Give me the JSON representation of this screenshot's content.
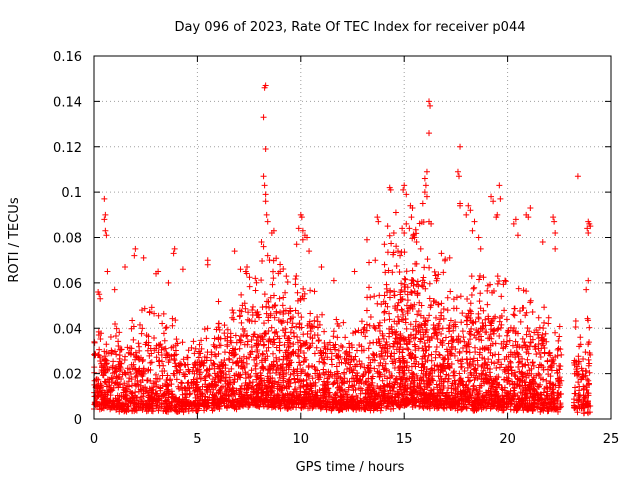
{
  "chart_data": {
    "type": "scatter",
    "title": "Day 096 of 2023, Rate Of TEC Index for receiver p044",
    "xlabel": "GPS time / hours",
    "ylabel": "ROTI / TECUs",
    "xlim": [
      0,
      25
    ],
    "ylim": [
      0,
      0.16
    ],
    "x_ticks": [
      0,
      5,
      10,
      15,
      20,
      25
    ],
    "x_tick_labels": [
      "0",
      "5",
      "10",
      "15",
      "20",
      "25"
    ],
    "y_ticks": [
      0,
      0.02,
      0.04,
      0.06,
      0.08,
      0.1,
      0.12,
      0.14,
      0.16
    ],
    "y_tick_labels": [
      "0",
      "0.02",
      "0.04",
      "0.06",
      "0.08",
      "0.1",
      "0.12",
      "0.14",
      "0.16"
    ],
    "grid": true,
    "marker": "+",
    "color": "#ff0000",
    "series": [
      {
        "name": "ROTI",
        "points": [
          [
            8.3,
            0.147
          ],
          [
            8.25,
            0.146
          ],
          [
            8.2,
            0.133
          ],
          [
            8.3,
            0.119
          ],
          [
            8.2,
            0.107
          ],
          [
            8.25,
            0.103
          ],
          [
            8.3,
            0.099
          ],
          [
            8.3,
            0.096
          ],
          [
            8.35,
            0.09
          ],
          [
            8.4,
            0.087
          ],
          [
            8.1,
            0.078
          ],
          [
            8.4,
            0.072
          ],
          [
            8.6,
            0.082
          ],
          [
            8.7,
            0.083
          ],
          [
            8.2,
            0.076
          ],
          [
            16.2,
            0.14
          ],
          [
            16.25,
            0.138
          ],
          [
            16.2,
            0.126
          ],
          [
            16.1,
            0.109
          ],
          [
            16.0,
            0.106
          ],
          [
            16.05,
            0.103
          ],
          [
            16.0,
            0.1
          ],
          [
            16.1,
            0.098
          ],
          [
            15.9,
            0.095
          ],
          [
            16.2,
            0.087
          ],
          [
            16.3,
            0.086
          ],
          [
            17.7,
            0.12
          ],
          [
            17.6,
            0.109
          ],
          [
            17.65,
            0.107
          ],
          [
            17.7,
            0.095
          ],
          [
            17.7,
            0.094
          ],
          [
            15.0,
            0.103
          ],
          [
            14.95,
            0.101
          ],
          [
            15.1,
            0.099
          ],
          [
            15.3,
            0.094
          ],
          [
            15.4,
            0.093
          ],
          [
            15.35,
            0.089
          ],
          [
            15.1,
            0.086
          ],
          [
            14.9,
            0.084
          ],
          [
            15.0,
            0.082
          ],
          [
            15.5,
            0.08
          ],
          [
            15.8,
            0.075
          ],
          [
            15.6,
            0.078
          ],
          [
            14.3,
            0.102
          ],
          [
            14.35,
            0.101
          ],
          [
            14.6,
            0.091
          ],
          [
            13.7,
            0.089
          ],
          [
            13.75,
            0.087
          ],
          [
            13.2,
            0.079
          ],
          [
            14.2,
            0.085
          ],
          [
            14.5,
            0.082
          ],
          [
            14.7,
            0.074
          ],
          [
            14.8,
            0.072
          ],
          [
            10.0,
            0.09
          ],
          [
            10.05,
            0.089
          ],
          [
            10.1,
            0.083
          ],
          [
            10.2,
            0.081
          ],
          [
            10.3,
            0.08
          ],
          [
            10.1,
            0.079
          ],
          [
            9.9,
            0.084
          ],
          [
            9.8,
            0.077
          ],
          [
            10.4,
            0.074
          ],
          [
            19.6,
            0.103
          ],
          [
            19.65,
            0.097
          ],
          [
            19.3,
            0.096
          ],
          [
            19.2,
            0.098
          ],
          [
            19.5,
            0.09
          ],
          [
            19.45,
            0.089
          ],
          [
            18.1,
            0.094
          ],
          [
            18.2,
            0.092
          ],
          [
            18.0,
            0.09
          ],
          [
            18.4,
            0.087
          ],
          [
            18.3,
            0.083
          ],
          [
            18.6,
            0.08
          ],
          [
            20.4,
            0.088
          ],
          [
            20.3,
            0.086
          ],
          [
            20.5,
            0.081
          ],
          [
            20.9,
            0.09
          ],
          [
            21.0,
            0.089
          ],
          [
            21.1,
            0.093
          ],
          [
            22.2,
            0.089
          ],
          [
            22.25,
            0.087
          ],
          [
            22.3,
            0.082
          ],
          [
            23.4,
            0.107
          ],
          [
            23.9,
            0.087
          ],
          [
            23.95,
            0.086
          ],
          [
            24.0,
            0.085
          ],
          [
            23.85,
            0.084
          ],
          [
            23.9,
            0.082
          ],
          [
            0.5,
            0.097
          ],
          [
            0.55,
            0.09
          ],
          [
            0.5,
            0.088
          ],
          [
            0.55,
            0.083
          ],
          [
            0.6,
            0.081
          ],
          [
            0.65,
            0.065
          ],
          [
            0.2,
            0.056
          ],
          [
            0.25,
            0.055
          ],
          [
            0.3,
            0.053
          ],
          [
            1.0,
            0.057
          ],
          [
            1.5,
            0.067
          ],
          [
            2.0,
            0.075
          ],
          [
            1.95,
            0.072
          ],
          [
            2.4,
            0.071
          ],
          [
            3.1,
            0.065
          ],
          [
            3.0,
            0.064
          ],
          [
            3.6,
            0.06
          ],
          [
            3.9,
            0.075
          ],
          [
            3.85,
            0.073
          ],
          [
            4.3,
            0.066
          ],
          [
            5.5,
            0.07
          ],
          [
            5.5,
            0.068
          ],
          [
            6.8,
            0.074
          ],
          [
            7.4,
            0.067
          ],
          [
            7.8,
            0.062
          ],
          [
            9.0,
            0.065
          ],
          [
            9.3,
            0.063
          ],
          [
            11.0,
            0.067
          ],
          [
            11.6,
            0.061
          ],
          [
            12.6,
            0.065
          ],
          [
            13.3,
            0.069
          ],
          [
            13.6,
            0.07
          ],
          [
            16.8,
            0.073
          ],
          [
            17.2,
            0.071
          ],
          [
            18.7,
            0.075
          ],
          [
            21.7,
            0.078
          ],
          [
            22.3,
            0.075
          ],
          [
            23.9,
            0.061
          ],
          [
            23.8,
            0.057
          ]
        ],
        "bands": [
          {
            "from": 0.0,
            "to": 1.0,
            "base": 0.006,
            "peak": 0.028,
            "dense": 170
          },
          {
            "from": 1.0,
            "to": 2.0,
            "base": 0.005,
            "peak": 0.03,
            "dense": 150
          },
          {
            "from": 2.0,
            "to": 3.0,
            "base": 0.005,
            "peak": 0.034,
            "dense": 150
          },
          {
            "from": 3.0,
            "to": 4.0,
            "base": 0.005,
            "peak": 0.032,
            "dense": 150
          },
          {
            "from": 4.0,
            "to": 5.0,
            "base": 0.005,
            "peak": 0.024,
            "dense": 140
          },
          {
            "from": 5.0,
            "to": 6.0,
            "base": 0.006,
            "peak": 0.028,
            "dense": 150
          },
          {
            "from": 6.0,
            "to": 7.0,
            "base": 0.007,
            "peak": 0.036,
            "dense": 170
          },
          {
            "from": 7.0,
            "to": 8.0,
            "base": 0.008,
            "peak": 0.046,
            "dense": 200
          },
          {
            "from": 8.0,
            "to": 9.0,
            "base": 0.008,
            "peak": 0.05,
            "dense": 210
          },
          {
            "from": 9.0,
            "to": 10.0,
            "base": 0.007,
            "peak": 0.046,
            "dense": 200
          },
          {
            "from": 10.0,
            "to": 11.0,
            "base": 0.007,
            "peak": 0.04,
            "dense": 180
          },
          {
            "from": 11.0,
            "to": 12.0,
            "base": 0.006,
            "peak": 0.032,
            "dense": 160
          },
          {
            "from": 12.0,
            "to": 13.0,
            "base": 0.006,
            "peak": 0.03,
            "dense": 160
          },
          {
            "from": 13.0,
            "to": 14.0,
            "base": 0.006,
            "peak": 0.04,
            "dense": 180
          },
          {
            "from": 14.0,
            "to": 15.0,
            "base": 0.007,
            "peak": 0.056,
            "dense": 230
          },
          {
            "from": 15.0,
            "to": 16.0,
            "base": 0.008,
            "peak": 0.06,
            "dense": 250
          },
          {
            "from": 16.0,
            "to": 17.0,
            "base": 0.007,
            "peak": 0.05,
            "dense": 220
          },
          {
            "from": 17.0,
            "to": 18.0,
            "base": 0.006,
            "peak": 0.04,
            "dense": 180
          },
          {
            "from": 18.0,
            "to": 19.0,
            "base": 0.006,
            "peak": 0.046,
            "dense": 200
          },
          {
            "from": 19.0,
            "to": 20.0,
            "base": 0.006,
            "peak": 0.044,
            "dense": 190
          },
          {
            "from": 20.0,
            "to": 21.0,
            "base": 0.006,
            "peak": 0.04,
            "dense": 180
          },
          {
            "from": 21.0,
            "to": 22.0,
            "base": 0.005,
            "peak": 0.036,
            "dense": 170
          },
          {
            "from": 22.0,
            "to": 22.6,
            "base": 0.005,
            "peak": 0.03,
            "dense": 90
          },
          {
            "from": 23.2,
            "to": 24.0,
            "base": 0.004,
            "peak": 0.032,
            "dense": 110
          }
        ]
      }
    ]
  }
}
